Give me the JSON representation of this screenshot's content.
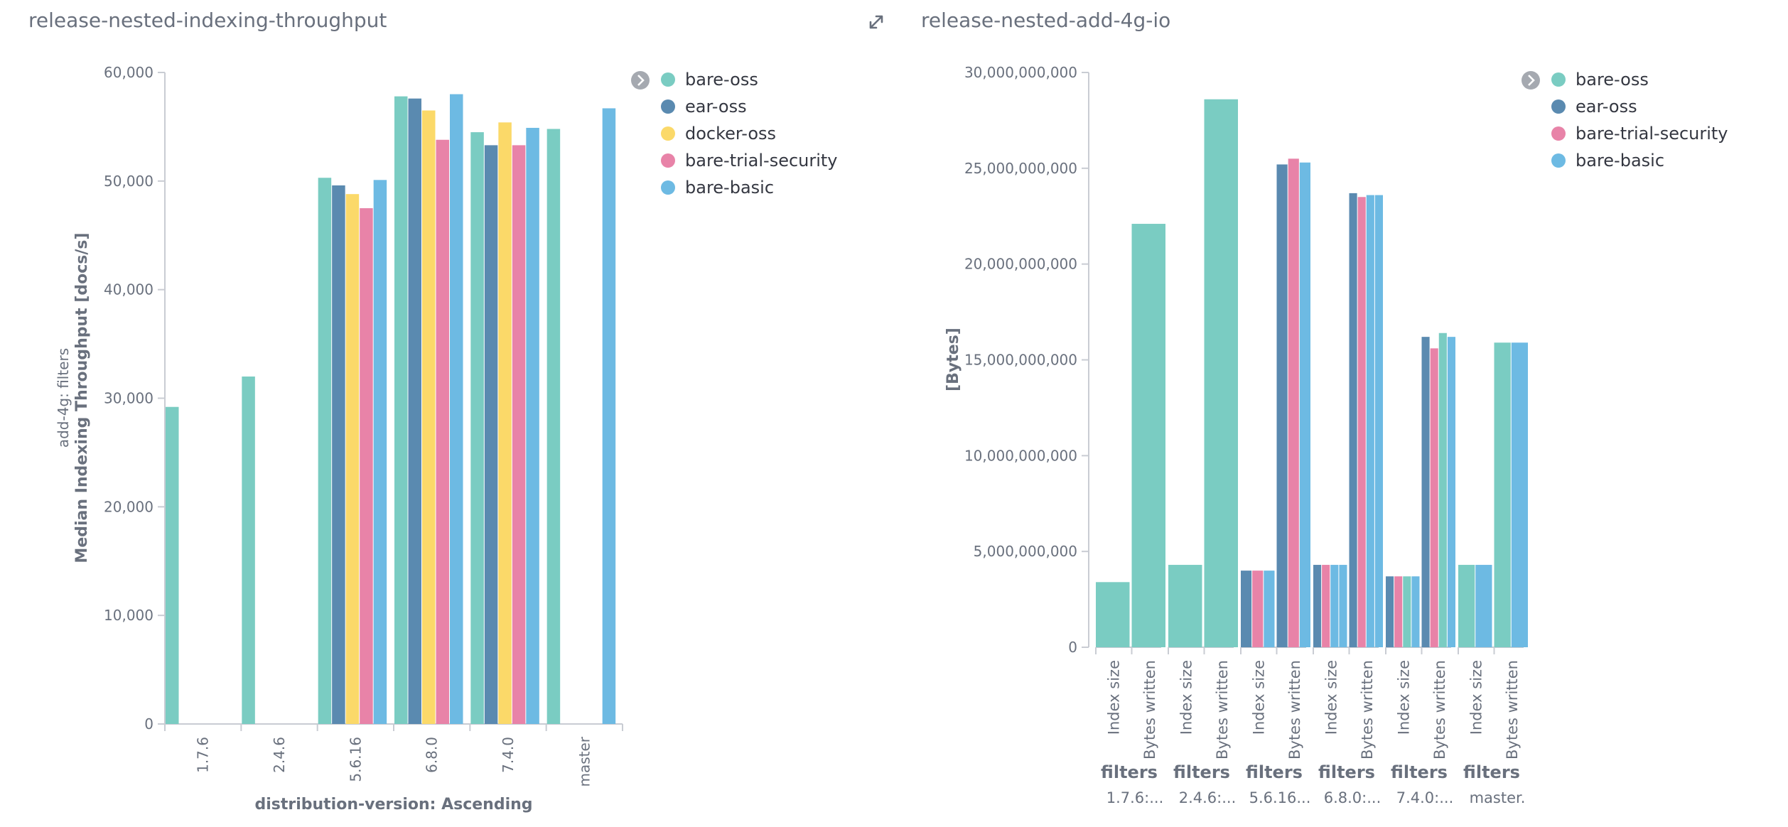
{
  "panels": {
    "left": {
      "title": "release-nested-indexing-throughput"
    },
    "right": {
      "title": "release-nested-add-4g-io"
    }
  },
  "icons": {
    "expand": "expand-icon",
    "legend_toggle": "chevron-right-icon"
  },
  "chart_data": [
    {
      "type": "bar",
      "title": "release-nested-indexing-throughput",
      "xlabel": "distribution-version: Ascending",
      "ylabel": "Median Indexing Throughput [docs/s]",
      "ylabel_secondary": "add-4g: filters",
      "ylim": [
        0,
        60000
      ],
      "yticks": [
        0,
        10000,
        20000,
        30000,
        40000,
        50000,
        60000
      ],
      "ytick_labels": [
        "0",
        "10,000",
        "20,000",
        "30,000",
        "40,000",
        "50,000",
        "60,000"
      ],
      "categories": [
        "1.7.6",
        "2.4.6",
        "5.6.16",
        "6.8.0",
        "7.4.0",
        "master"
      ],
      "legend_position": "top-right",
      "grid": false,
      "series": [
        {
          "name": "bare-oss",
          "color": "#7accc2",
          "values": [
            29200,
            32000,
            50300,
            57800,
            54500,
            54800
          ]
        },
        {
          "name": "ear-oss",
          "color": "#5a8ab0",
          "values": [
            null,
            null,
            49600,
            57600,
            53300,
            null
          ]
        },
        {
          "name": "docker-oss",
          "color": "#fbd969",
          "values": [
            null,
            null,
            48800,
            56500,
            55400,
            null
          ]
        },
        {
          "name": "bare-trial-security",
          "color": "#e883a8",
          "values": [
            null,
            null,
            47500,
            53800,
            53300,
            null
          ]
        },
        {
          "name": "bare-basic",
          "color": "#6dbae3",
          "values": [
            null,
            null,
            50100,
            58000,
            54900,
            56700
          ]
        }
      ]
    },
    {
      "type": "bar",
      "title": "release-nested-add-4g-io",
      "xlabel": "",
      "ylabel": "[Bytes]",
      "ylim": [
        0,
        30000000000
      ],
      "yticks": [
        0,
        5000000000,
        10000000000,
        15000000000,
        20000000000,
        25000000000,
        30000000000
      ],
      "ytick_labels": [
        "0",
        "5,000,000,000",
        "10,000,000,000",
        "15,000,000,000",
        "20,000,000,000",
        "25,000,000,000",
        "30,000,000,000"
      ],
      "sub_categories": [
        "Index size",
        "Bytes written"
      ],
      "groups": [
        {
          "title": "filters",
          "label": "1.7.6:...",
          "series": [
            "bare-oss"
          ],
          "values": {
            "Index size": [
              3400000000
            ],
            "Bytes written": [
              22100000000
            ]
          }
        },
        {
          "title": "filters",
          "label": "2.4.6:...",
          "series": [
            "bare-oss"
          ],
          "values": {
            "Index size": [
              4300000000
            ],
            "Bytes written": [
              28600000000
            ]
          }
        },
        {
          "title": "filters",
          "label": "5.6.16...",
          "series": [
            "ear-oss",
            "bare-trial-security",
            "bare-basic"
          ],
          "values": {
            "Index size": [
              4000000000,
              4000000000,
              4000000000
            ],
            "Bytes written": [
              25200000000,
              25500000000,
              25300000000
            ]
          }
        },
        {
          "title": "filters",
          "label": "6.8.0:...",
          "series": [
            "ear-oss",
            "bare-trial-security",
            "bare-basic",
            "bare-basic"
          ],
          "values": {
            "Index size": [
              4300000000,
              4300000000,
              4300000000,
              4300000000
            ],
            "Bytes written": [
              23700000000,
              23500000000,
              23600000000,
              23600000000
            ]
          }
        },
        {
          "title": "filters",
          "label": "7.4.0:...",
          "series": [
            "ear-oss",
            "bare-trial-security",
            "bare-oss",
            "bare-basic"
          ],
          "values": {
            "Index size": [
              3700000000,
              3700000000,
              3700000000,
              3700000000
            ],
            "Bytes written": [
              16200000000,
              15600000000,
              16400000000,
              16200000000
            ]
          }
        },
        {
          "title": "filters",
          "label": "master.",
          "series": [
            "bare-oss",
            "bare-basic"
          ],
          "values": {
            "Index size": [
              4300000000,
              4300000000
            ],
            "Bytes written": [
              15900000000,
              15900000000
            ]
          }
        }
      ],
      "legend_position": "top-right",
      "grid": false,
      "series": [
        {
          "name": "bare-oss",
          "color": "#7accc2"
        },
        {
          "name": "ear-oss",
          "color": "#5a8ab0"
        },
        {
          "name": "bare-trial-security",
          "color": "#e883a8"
        },
        {
          "name": "bare-basic",
          "color": "#6dbae3"
        }
      ]
    }
  ]
}
